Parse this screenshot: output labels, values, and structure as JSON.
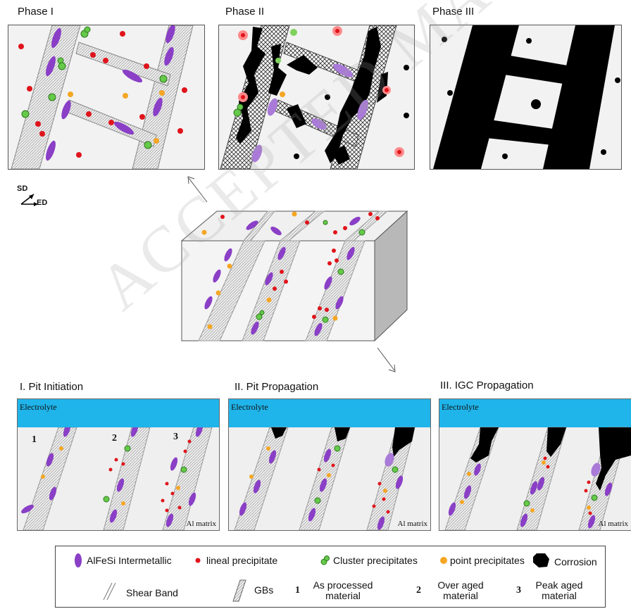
{
  "phases": [
    {
      "title": "Phase I"
    },
    {
      "title": "Phase II"
    },
    {
      "title": "Phase III"
    }
  ],
  "orientation": {
    "sd": "SD",
    "ed": "ED"
  },
  "sections": [
    {
      "title": "I. Pit Initiation",
      "electrolyte": "Electrolyte",
      "matrix": "Al matrix",
      "numbers": [
        "1",
        "2",
        "3"
      ]
    },
    {
      "title": "II. Pit Propagation",
      "electrolyte": "Electrolyte",
      "matrix": "Al matrix"
    },
    {
      "title": "III. IGC Propagation",
      "electrolyte": "Electrolyte",
      "matrix": "Al matrix"
    }
  ],
  "legend": {
    "alfesi": "AlFeSi Intermetallic",
    "lineal": "lineal precipitate",
    "cluster": "Cluster precipitates",
    "point": "point precipitates",
    "corrosion": "Corrosion",
    "shear_band": "Shear Band",
    "gbs": "GBs",
    "item1_num": "1",
    "item1_label": "As processed material",
    "item2_num": "2",
    "item2_label": "Over aged material",
    "item3_num": "3",
    "item3_label": "Peak aged material"
  },
  "watermark": "ACCEPTED MANUSCRIPT",
  "colors": {
    "alfesi": "#8a3fc6",
    "lineal": "#e0141b",
    "cluster": "#66c94a",
    "point": "#f5a623",
    "corrosion": "#000000",
    "electrolyte": "#1fb4ea",
    "panel_bg": "#f2f2f2"
  }
}
